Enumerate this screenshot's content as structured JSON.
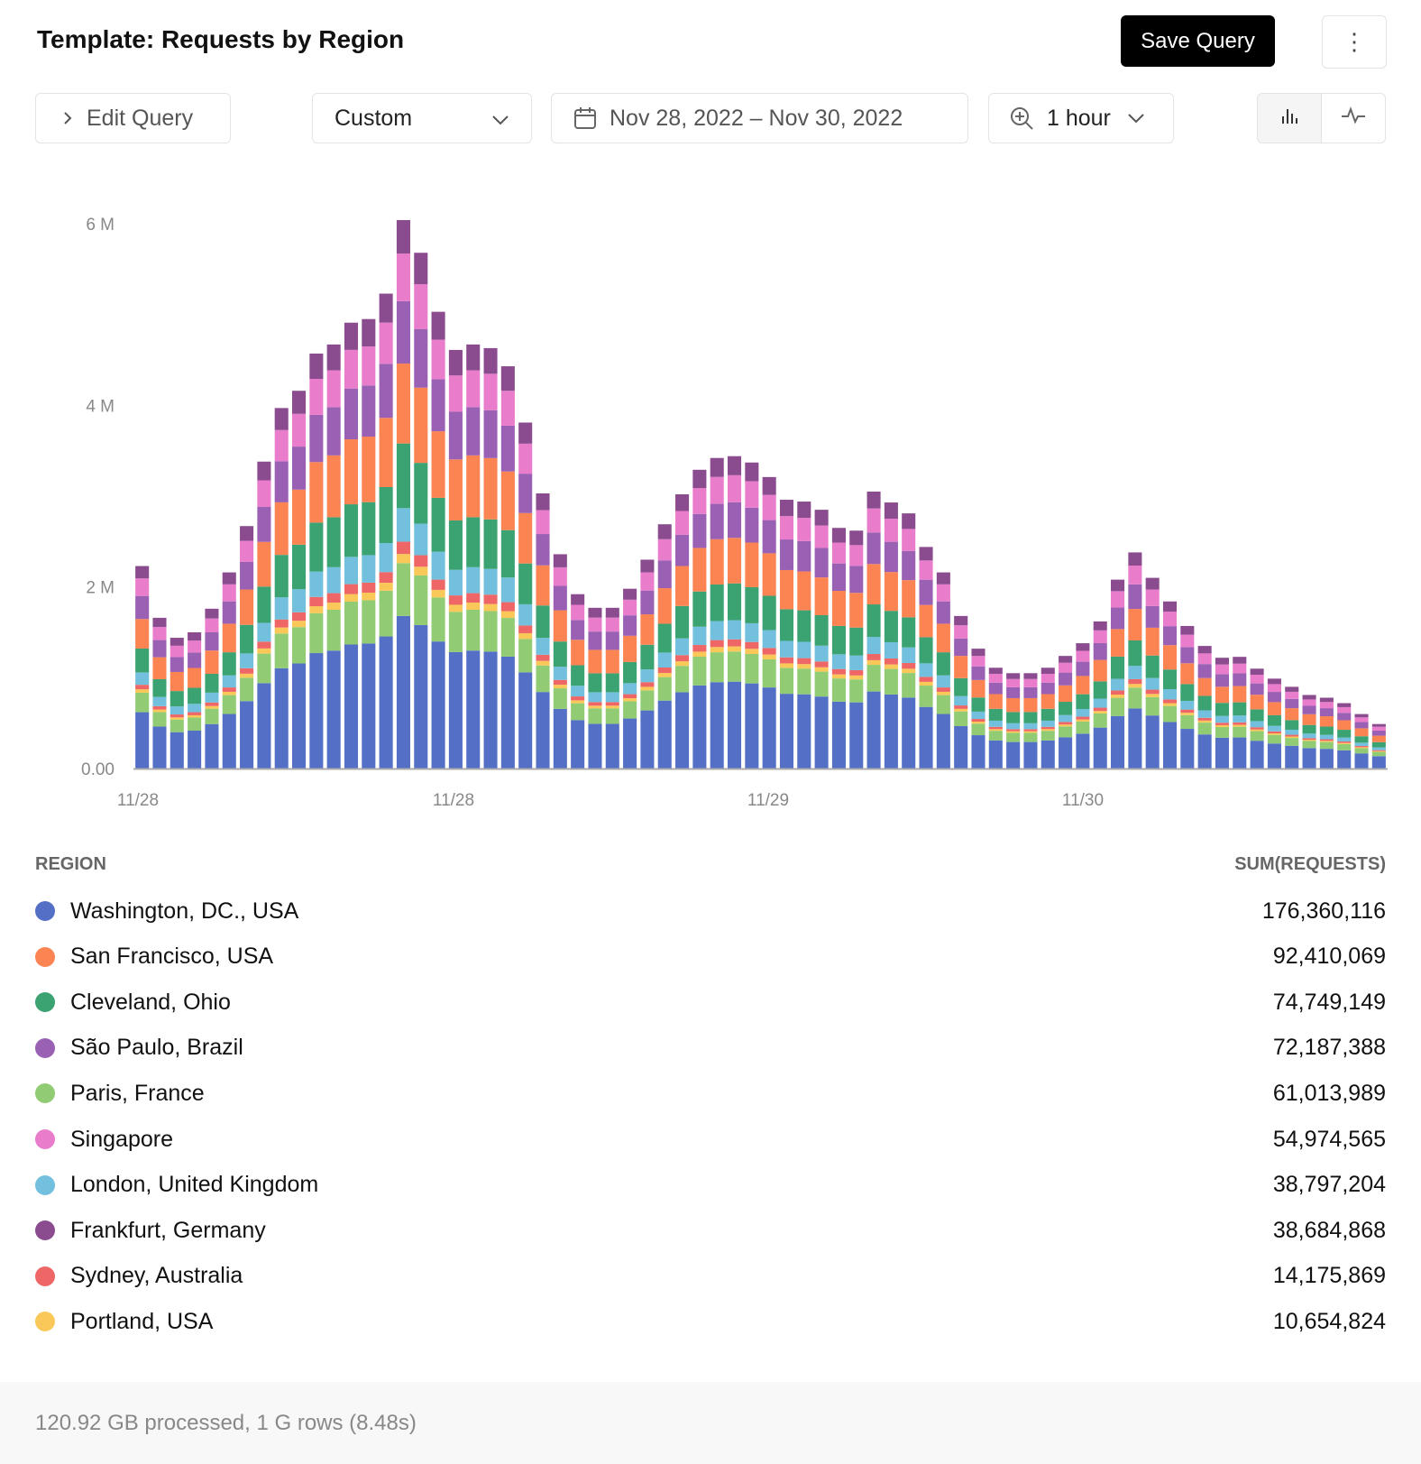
{
  "header": {
    "title": "Template: Requests by Region",
    "save_label": "Save Query",
    "more_icon": "vertical-ellipsis-icon"
  },
  "toolbar": {
    "edit_query_label": "Edit Query",
    "range_preset": "Custom",
    "date_range": "Nov 28, 2022 – Nov 30, 2022",
    "granularity": "1 hour",
    "view_modes": [
      "bar-chart-icon",
      "line-chart-icon"
    ],
    "active_view": "bar-chart-icon"
  },
  "chart_data": {
    "type": "bar",
    "stacked": true,
    "ytick_labels": [
      "0.00",
      "2 M",
      "4 M",
      "6 M"
    ],
    "ylim": [
      0,
      6000000
    ],
    "xtick_labels": [
      "11/28",
      "11/28",
      "11/29",
      "11/30"
    ],
    "totals": [
      2230000,
      1660000,
      1440000,
      1500000,
      1760000,
      2160000,
      2670000,
      3380000,
      3970000,
      4160000,
      4570000,
      4670000,
      4910000,
      4950000,
      5230000,
      6040000,
      5680000,
      5030000,
      4610000,
      4670000,
      4630000,
      4430000,
      3810000,
      3030000,
      2360000,
      1920000,
      1770000,
      1770000,
      1980000,
      2300000,
      2690000,
      3020000,
      3290000,
      3420000,
      3440000,
      3370000,
      3210000,
      2960000,
      2940000,
      2850000,
      2650000,
      2620000,
      3050000,
      2930000,
      2810000,
      2440000,
      2160000,
      1680000,
      1320000,
      1110000,
      1050000,
      1050000,
      1110000,
      1240000,
      1380000,
      1620000,
      2080000,
      2380000,
      2100000,
      1840000,
      1570000,
      1350000,
      1220000,
      1230000,
      1100000,
      990000,
      900000,
      810000,
      780000,
      720000,
      600000,
      490000
    ],
    "stack_order": [
      "Washington, DC., USA",
      "Paris, France",
      "Portland, USA",
      "Sydney, Australia",
      "London, United Kingdom",
      "Cleveland, Ohio",
      "San Francisco, USA",
      "São Paulo, Brazil",
      "Singapore",
      "Frankfurt, Germany"
    ],
    "legend_position": "bottom-table"
  },
  "legend": {
    "col_region": "REGION",
    "col_sum": "SUM(REQUESTS)",
    "rows": [
      {
        "name": "Washington, DC., USA",
        "value": "176,360,116",
        "color": "#5470c6"
      },
      {
        "name": "San Francisco, USA",
        "value": "92,410,069",
        "color": "#fc8452"
      },
      {
        "name": "Cleveland, Ohio",
        "value": "74,749,149",
        "color": "#3ba272"
      },
      {
        "name": "São Paulo, Brazil",
        "value": "72,187,388",
        "color": "#9a60b4"
      },
      {
        "name": "Paris, France",
        "value": "61,013,989",
        "color": "#91cc75"
      },
      {
        "name": "Singapore",
        "value": "54,974,565",
        "color": "#ea7ccc"
      },
      {
        "name": "London, United Kingdom",
        "value": "38,797,204",
        "color": "#73c0de"
      },
      {
        "name": "Frankfurt, Germany",
        "value": "38,684,868",
        "color": "#8b4c8f"
      },
      {
        "name": "Sydney, Australia",
        "value": "14,175,869",
        "color": "#ee6666"
      },
      {
        "name": "Portland, USA",
        "value": "10,654,824",
        "color": "#fac858"
      }
    ]
  },
  "footer": {
    "stats": "120.92 GB processed, 1 G rows (8.48s)"
  }
}
